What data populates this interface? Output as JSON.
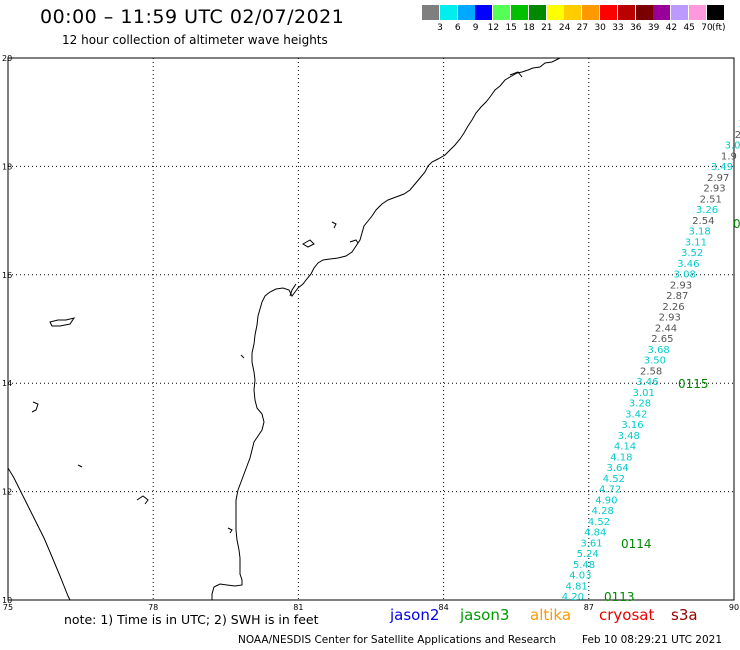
{
  "header": {
    "title": "00:00 – 11:59 UTC 02/07/2021",
    "subtitle": "12 hour collection of altimeter wave heights"
  },
  "legend": {
    "unit": "(ft)",
    "entries": [
      {
        "label": "3",
        "color": "#7f7f7f"
      },
      {
        "label": "6",
        "color": "#00eeee"
      },
      {
        "label": "9",
        "color": "#00a8ff"
      },
      {
        "label": "12",
        "color": "#0000ff"
      },
      {
        "label": "15",
        "color": "#55ff55"
      },
      {
        "label": "18",
        "color": "#00c000"
      },
      {
        "label": "21",
        "color": "#008800"
      },
      {
        "label": "24",
        "color": "#ffff00"
      },
      {
        "label": "27",
        "color": "#ffcc00"
      },
      {
        "label": "30",
        "color": "#ff9900"
      },
      {
        "label": "33",
        "color": "#ff0000"
      },
      {
        "label": "36",
        "color": "#bb0000"
      },
      {
        "label": "39",
        "color": "#7a0000"
      },
      {
        "label": "42",
        "color": "#990099"
      },
      {
        "label": "45",
        "color": "#bb99ff"
      },
      {
        "label": "70",
        "color": "#ff99dd"
      },
      {
        "label": "",
        "color": "#000000"
      }
    ]
  },
  "map": {
    "lat_ticks": [
      "20",
      "18",
      "16",
      "14",
      "12",
      "10"
    ],
    "lon_ticks": [
      "75",
      "78",
      "81",
      "84",
      "87",
      "90"
    ],
    "lon_range": [
      75,
      90
    ],
    "lat_range": [
      10,
      20
    ],
    "track_labels": [
      {
        "text": "0115",
        "color": "#008800"
      },
      {
        "text": "0114",
        "color": "#008800"
      },
      {
        "text": "0113",
        "color": "#008800"
      },
      {
        "text": "0",
        "color": "#008800"
      }
    ],
    "track_values": [
      {
        "text": "3.",
        "color": "#00cccc"
      },
      {
        "text": "2.",
        "color": "#555555"
      },
      {
        "text": "3.0",
        "color": "#00cccc"
      },
      {
        "text": "1.9",
        "color": "#555555"
      },
      {
        "text": "3.49",
        "color": "#00cccc"
      },
      {
        "text": "2.97",
        "color": "#555555"
      },
      {
        "text": "2.93",
        "color": "#555555"
      },
      {
        "text": "2.51",
        "color": "#555555"
      },
      {
        "text": "3.26",
        "color": "#00cccc"
      },
      {
        "text": "2.54",
        "color": "#555555"
      },
      {
        "text": "3.18",
        "color": "#00cccc"
      },
      {
        "text": "3.11",
        "color": "#00cccc"
      },
      {
        "text": "3.52",
        "color": "#00cccc"
      },
      {
        "text": "3.46",
        "color": "#00cccc"
      },
      {
        "text": "3.08",
        "color": "#00cccc"
      },
      {
        "text": "2.93",
        "color": "#555555"
      },
      {
        "text": "2.87",
        "color": "#555555"
      },
      {
        "text": "2.26",
        "color": "#555555"
      },
      {
        "text": "2.93",
        "color": "#555555"
      },
      {
        "text": "2.44",
        "color": "#555555"
      },
      {
        "text": "2.65",
        "color": "#555555"
      },
      {
        "text": "3.68",
        "color": "#00cccc"
      },
      {
        "text": "3.50",
        "color": "#00cccc"
      },
      {
        "text": "2.58",
        "color": "#555555"
      },
      {
        "text": "3.46",
        "color": "#00cccc"
      },
      {
        "text": "3.01",
        "color": "#00cccc"
      },
      {
        "text": "3.28",
        "color": "#00cccc"
      },
      {
        "text": "3.42",
        "color": "#00cccc"
      },
      {
        "text": "3.16",
        "color": "#00cccc"
      },
      {
        "text": "3.48",
        "color": "#00cccc"
      },
      {
        "text": "4.14",
        "color": "#00cccc"
      },
      {
        "text": "4.18",
        "color": "#00cccc"
      },
      {
        "text": "3.64",
        "color": "#00cccc"
      },
      {
        "text": "4.52",
        "color": "#00cccc"
      },
      {
        "text": "4.72",
        "color": "#00cccc"
      },
      {
        "text": "4.90",
        "color": "#00cccc"
      },
      {
        "text": "4.28",
        "color": "#00cccc"
      },
      {
        "text": "4.52",
        "color": "#00cccc"
      },
      {
        "text": "4.84",
        "color": "#00cccc"
      },
      {
        "text": "3.61",
        "color": "#00cccc"
      },
      {
        "text": "5.24",
        "color": "#00cccc"
      },
      {
        "text": "5.48",
        "color": "#00cccc"
      },
      {
        "text": "4.03",
        "color": "#00cccc"
      },
      {
        "text": "4.81",
        "color": "#00cccc"
      },
      {
        "text": "4.20",
        "color": "#00cccc"
      }
    ]
  },
  "footer": {
    "note": "note: 1) Time is in UTC; 2) SWH is in feet",
    "satellites": [
      {
        "name": "jason2",
        "color": "#0000ee"
      },
      {
        "name": "jason3",
        "color": "#009900"
      },
      {
        "name": "altika",
        "color": "#ff9900"
      },
      {
        "name": "cryosat",
        "color": "#ee0000"
      },
      {
        "name": "s3a",
        "color": "#990000"
      }
    ],
    "credit": "NOAA/NESDIS Center for Satellite Applications and Research",
    "timestamp": "Feb 10 08:29:21 UTC 2021"
  }
}
